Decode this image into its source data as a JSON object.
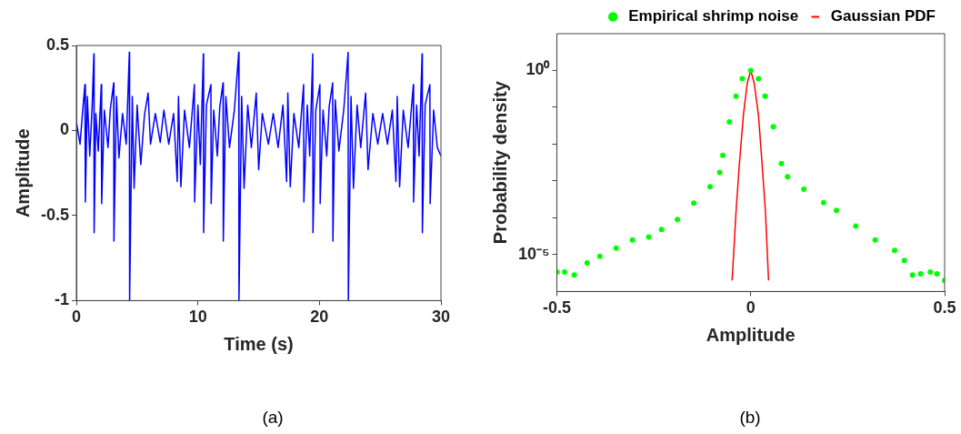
{
  "chart_data": [
    {
      "type": "line",
      "xlabel": "Time (s)",
      "ylabel": "Amplitude",
      "xlim": [
        0,
        30
      ],
      "xticks": [
        0,
        10,
        20,
        30
      ],
      "ylim": [
        -1,
        0.5
      ],
      "yticks": [
        -1,
        -0.5,
        0,
        0.5
      ],
      "grid": false,
      "legend": false,
      "marker": "none",
      "annotations": [
        "(a)"
      ],
      "series": [
        {
          "color": "#0000ff",
          "x": [
            0,
            0.3,
            0.5,
            0.7,
            0.74,
            0.9,
            1.1,
            1.3,
            1.44,
            1.46,
            1.6,
            1.8,
            2.05,
            2.08,
            2.3,
            2.6,
            2.8,
            3.07,
            3.09,
            3.3,
            3.5,
            3.8,
            4.1,
            4.36,
            4.38,
            4.6,
            4.75,
            5.0,
            5.3,
            5.6,
            5.9,
            6.1,
            6.5,
            6.9,
            7.2,
            7.6,
            8.0,
            8.3,
            8.4,
            8.6,
            8.9,
            9.3,
            9.71,
            9.73,
            10.0,
            10.2,
            10.45,
            10.47,
            10.7,
            11.07,
            11.09,
            11.3,
            11.6,
            11.8,
            12.07,
            12.09,
            12.3,
            12.6,
            13.0,
            13.36,
            13.38,
            13.6,
            13.8,
            14.1,
            14.4,
            14.8,
            15.0,
            15.3,
            15.8,
            16.2,
            16.6,
            17.0,
            17.3,
            17.4,
            17.6,
            17.9,
            18.3,
            18.7,
            18.72,
            19.0,
            19.2,
            19.45,
            19.47,
            19.7,
            20.04,
            20.06,
            20.3,
            20.6,
            20.8,
            21.09,
            21.11,
            21.3,
            21.6,
            22.0,
            22.36,
            22.38,
            22.6,
            22.8,
            23.1,
            23.4,
            23.8,
            24.0,
            24.4,
            24.8,
            25.2,
            25.6,
            26.0,
            26.3,
            26.4,
            26.6,
            26.9,
            27.3,
            27.73,
            27.75,
            28.0,
            28.2,
            28.45,
            28.47,
            28.7,
            29.09,
            29.11,
            29.4,
            29.7,
            30
          ],
          "values": [
            0.05,
            -0.08,
            0.1,
            0.27,
            -0.42,
            0.2,
            -0.15,
            0.15,
            0.45,
            -0.6,
            0.1,
            -0.12,
            0.27,
            -0.43,
            0.12,
            -0.1,
            0.13,
            0.28,
            -0.65,
            0.2,
            -0.16,
            0.1,
            -0.08,
            0.46,
            -1,
            0.2,
            -0.34,
            0.15,
            -0.2,
            0.09,
            0.22,
            -0.08,
            0.1,
            -0.07,
            0.12,
            -0.08,
            0.1,
            -0.3,
            0.2,
            -0.33,
            0.12,
            -0.1,
            0.27,
            -0.42,
            0.15,
            -0.2,
            0.45,
            -0.6,
            0.15,
            0.27,
            -0.43,
            0.12,
            -0.15,
            0.14,
            0.28,
            -0.65,
            0.2,
            -0.1,
            0.12,
            0.46,
            -1,
            0.2,
            -0.34,
            0.15,
            -0.1,
            0.22,
            -0.23,
            0.1,
            -0.08,
            0.1,
            -0.1,
            0.15,
            -0.3,
            0.22,
            -0.33,
            0.1,
            -0.1,
            0.27,
            -0.42,
            0.15,
            -0.15,
            0.45,
            -0.6,
            0.12,
            0.27,
            -0.43,
            0.12,
            -0.15,
            0.14,
            0.28,
            -0.65,
            0.18,
            -0.12,
            0.12,
            0.46,
            -1,
            0.2,
            -0.34,
            0.15,
            -0.1,
            0.22,
            -0.23,
            0.1,
            -0.08,
            0.1,
            -0.08,
            0.12,
            -0.3,
            0.2,
            -0.33,
            0.12,
            -0.1,
            0.27,
            -0.42,
            0.15,
            -0.15,
            0.45,
            -0.6,
            0.15,
            0.27,
            -0.43,
            0.12,
            -0.1,
            -0.15
          ]
        }
      ]
    },
    {
      "type": "line",
      "xlabel": "Amplitude",
      "ylabel": "Probability density",
      "xlim": [
        -0.5,
        0.5
      ],
      "xticks": [
        -0.5,
        0,
        0.5
      ],
      "ylim": [
        1e-06,
        10
      ],
      "log": "y",
      "yticks": [
        {
          "value": 1e-05,
          "label": "10⁻⁵"
        },
        {
          "value": 0.0001,
          "label": null
        },
        {
          "value": 0.001,
          "label": null
        },
        {
          "value": 0.01,
          "label": null
        },
        {
          "value": 0.1,
          "label": null
        },
        {
          "value": 1,
          "label": "10⁰"
        }
      ],
      "grid": false,
      "legend": "top",
      "annotations": [
        "(b)"
      ],
      "series": [
        {
          "name": "Empirical shrimp noise",
          "color": "#00ff00",
          "type": "scatter",
          "marker": "circle",
          "x": [
            -0.5,
            -0.48,
            -0.455,
            -0.422,
            -0.389,
            -0.347,
            -0.305,
            -0.263,
            -0.23,
            -0.189,
            -0.147,
            -0.105,
            -0.08,
            -0.072,
            -0.055,
            -0.038,
            -0.022,
            0,
            0.02,
            0.037,
            0.058,
            0.079,
            0.095,
            0.137,
            0.188,
            0.221,
            0.271,
            0.321,
            0.371,
            0.396,
            0.417,
            0.438,
            0.463,
            0.48,
            0.5
          ],
          "values": [
            3.4e-06,
            3.4e-06,
            2.8e-06,
            6e-06,
            9e-06,
            1.5e-05,
            2.5e-05,
            3e-05,
            4.8e-05,
            9e-05,
            0.00025,
            0.0007,
            0.0017,
            0.005,
            0.04,
            0.2,
            0.6,
            1,
            0.6,
            0.2,
            0.03,
            0.003,
            0.0013,
            0.0006,
            0.00026,
            0.00016,
            6e-05,
            2.5e-05,
            1.3e-05,
            7e-06,
            2.8e-06,
            3e-06,
            3.4e-06,
            3e-06,
            2e-06
          ]
        },
        {
          "name": "Gaussian PDF",
          "color": "#ff0000",
          "x": [
            -0.048,
            -0.038,
            -0.03,
            -0.019,
            -0.009,
            0,
            0.009,
            0.02,
            0.03,
            0.038,
            0.046
          ],
          "values": [
            2e-06,
            0.00014,
            0.0023,
            0.06,
            0.45,
            1,
            0.45,
            0.06,
            0.0023,
            0.00014,
            2e-06
          ]
        }
      ]
    }
  ]
}
